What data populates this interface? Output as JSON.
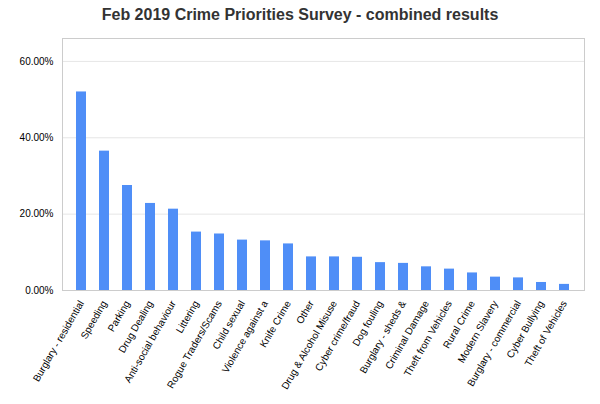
{
  "chart_data": {
    "type": "bar",
    "title": "Feb 2019 Crime Priorities Survey - combined results",
    "categories": [
      "Burglary - residential",
      "Speeding",
      "Parking",
      "Drug Dealing",
      "Anti-social behaviour",
      "Littering",
      "Rogue Traders/Scams",
      "Child sexual",
      "Violence against a",
      "Knife Crime",
      "Other",
      "Drug & Alcohol Misuse",
      "Cyber crime/fraud",
      "Dog fouling",
      "Burglary - sheds &",
      "Criminal Damage",
      "Theft from Vehicles",
      "Rural Crime",
      "Modern Slavery",
      "Burglary - commercial",
      "Cyber Bullying",
      "Theft of Vehicles"
    ],
    "values": [
      0.52,
      0.365,
      0.275,
      0.228,
      0.213,
      0.153,
      0.148,
      0.132,
      0.13,
      0.122,
      0.088,
      0.088,
      0.087,
      0.073,
      0.071,
      0.062,
      0.056,
      0.046,
      0.035,
      0.033,
      0.021,
      0.016
    ],
    "color": "#4F8EF7",
    "ylim": [
      0,
      0.66
    ],
    "yticks": [
      {
        "value": 0.0,
        "label": "0.00%"
      },
      {
        "value": 0.2,
        "label": "20.00%"
      },
      {
        "value": 0.4,
        "label": "40.00%"
      },
      {
        "value": 0.6,
        "label": "60.00%"
      }
    ],
    "grid": true
  }
}
